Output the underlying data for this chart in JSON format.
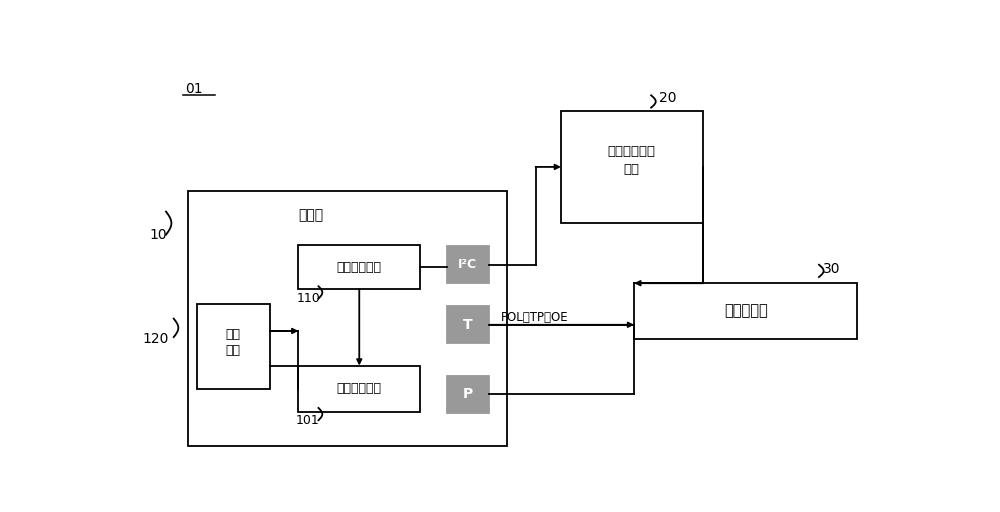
{
  "bg_color": "#ffffff",
  "line_color": "#000000",
  "gray_fill": "#999999",
  "processor_label": "处理器",
  "unit_data": "数据调用单元",
  "unit_detect_line1": "检测",
  "unit_detect_line2": "单元",
  "unit_storage": "第一存储单元",
  "unit_gray_line1": "灰阶电压生成",
  "unit_gray_line2": "单元",
  "unit_source": "源极驱动器",
  "label_i2c": "I²C",
  "label_t": "T",
  "label_p": "P",
  "label_pol": "POL、TP、OE",
  "label_01": "01",
  "label_10": "10",
  "label_20": "20",
  "label_30": "30",
  "label_110": "110",
  "label_101": "101",
  "label_120": "120"
}
